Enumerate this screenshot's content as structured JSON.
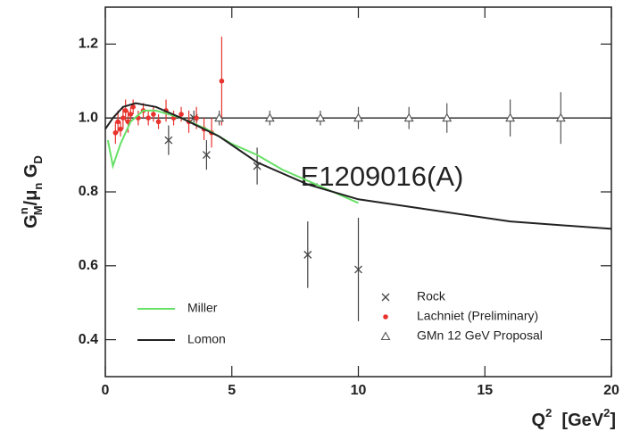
{
  "chart_data": {
    "type": "scatter",
    "xlim": [
      0,
      20
    ],
    "ylim": [
      0.3,
      1.3
    ],
    "xticks": [
      0,
      5,
      10,
      15,
      20
    ],
    "yticks": [
      0.4,
      0.6,
      0.8,
      {
        "value": 1,
        "label": "1.0"
      },
      1.2
    ],
    "hline": 1,
    "y_label": [
      "G",
      "n",
      "M",
      "/μ",
      "n",
      " G",
      "D"
    ],
    "x_label": [
      "Q",
      "2",
      "  [GeV",
      "2",
      "]"
    ],
    "annotation": "E1209016(A)",
    "series": [
      {
        "name": "Rock",
        "marker": "x",
        "color": "#444444",
        "x": [
          2.5,
          3.5,
          4.0,
          6.0,
          8.0,
          10.0
        ],
        "values": [
          0.94,
          1.0,
          0.9,
          0.87,
          0.63,
          0.59
        ],
        "errors": [
          0.04,
          0.02,
          0.04,
          0.05,
          0.09,
          0.14
        ]
      },
      {
        "name": "Lachniet (Preliminary)",
        "marker": "dot",
        "color": "#e8322d",
        "x": [
          0.4,
          0.5,
          0.6,
          0.7,
          0.8,
          0.9,
          1.0,
          1.1,
          1.3,
          1.5,
          1.7,
          1.9,
          2.1,
          2.4,
          2.7,
          3.0,
          3.3,
          3.6,
          3.9,
          4.2,
          4.6
        ],
        "values": [
          0.96,
          0.99,
          0.97,
          1.0,
          1.02,
          0.99,
          1.01,
          1.03,
          1.0,
          1.02,
          1.0,
          1.01,
          0.99,
          1.02,
          1.0,
          1.01,
          0.99,
          1.0,
          0.97,
          0.96,
          1.1
        ],
        "errors": [
          0.03,
          0.03,
          0.02,
          0.03,
          0.03,
          0.03,
          0.02,
          0.02,
          0.02,
          0.02,
          0.02,
          0.02,
          0.02,
          0.03,
          0.02,
          0.02,
          0.03,
          0.03,
          0.03,
          0.04,
          0.12
        ]
      },
      {
        "name": "GMn 12 GeV Proposal",
        "marker": "triangle",
        "color": "#555555",
        "x": [
          4.5,
          6.5,
          8.5,
          10,
          12,
          13.5,
          16,
          18
        ],
        "values": [
          1,
          1,
          1,
          1,
          1,
          1,
          1,
          1
        ],
        "errors": [
          0.02,
          0.02,
          0.02,
          0.03,
          0.03,
          0.04,
          0.05,
          0.07
        ]
      },
      {
        "name": "Miller",
        "marker": "line",
        "color": "#66e066",
        "x": [
          0.1,
          0.3,
          0.6,
          1.0,
          1.5,
          2.0,
          3.0,
          4.0,
          5.0,
          6.0,
          7.0,
          8.0,
          9.0,
          10.0
        ],
        "values": [
          0.94,
          0.87,
          0.93,
          0.99,
          1.02,
          1.02,
          1.0,
          0.97,
          0.93,
          0.9,
          0.86,
          0.83,
          0.8,
          0.77
        ]
      },
      {
        "name": "Lomon",
        "marker": "line",
        "color": "#222222",
        "x": [
          0,
          0.3,
          0.7,
          1.2,
          2.0,
          3.0,
          4.5,
          6.0,
          8.0,
          10.0,
          13.0,
          16.0,
          20.0
        ],
        "values": [
          0.97,
          1.0,
          1.03,
          1.04,
          1.03,
          1.0,
          0.95,
          0.88,
          0.82,
          0.78,
          0.75,
          0.72,
          0.7
        ]
      }
    ]
  }
}
